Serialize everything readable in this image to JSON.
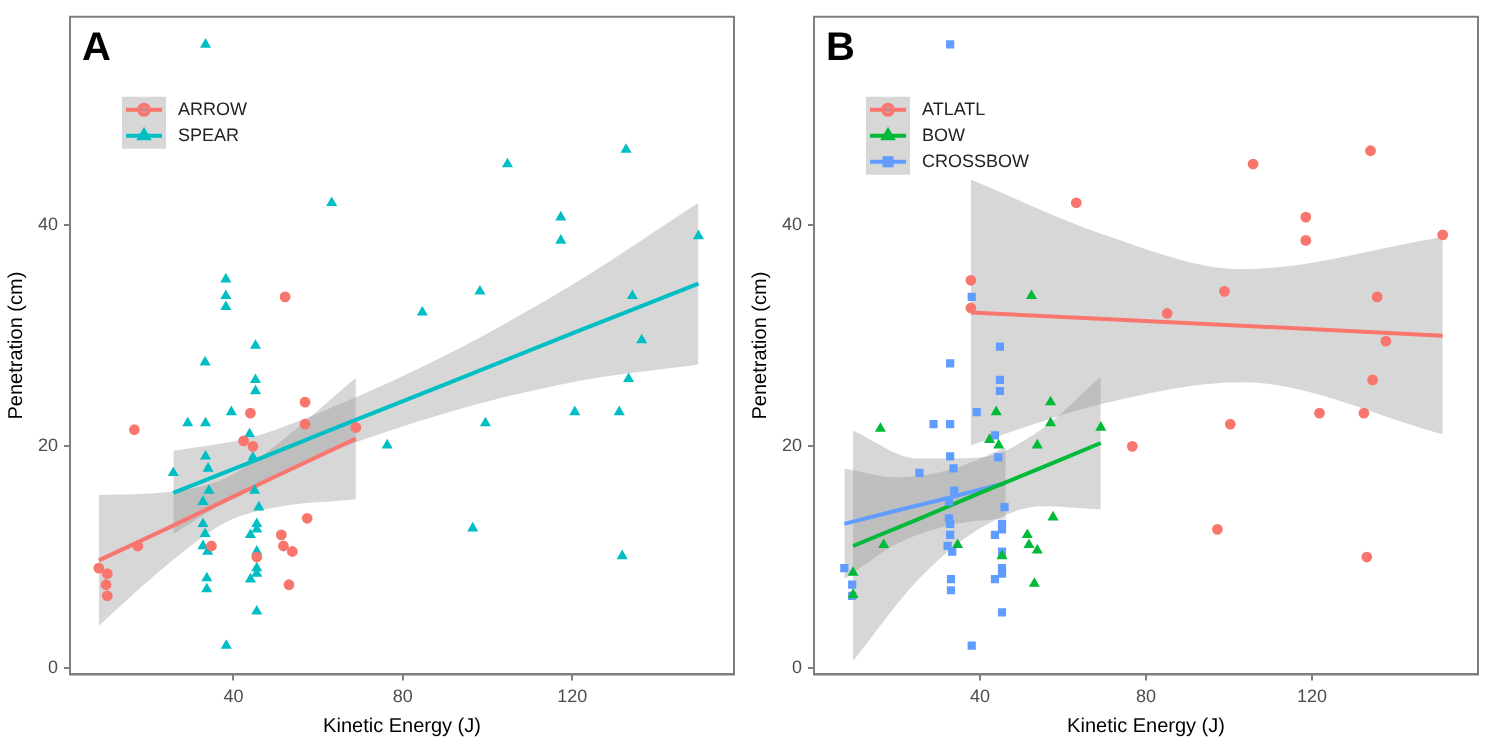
{
  "chart_data": [
    {
      "type": "scatter",
      "title": "A",
      "xlabel": "Kinetic Energy (J)",
      "ylabel": "Penetration (cm)",
      "xlim": [
        1.4,
        158.2
      ],
      "ylim": [
        -0.6,
        58.8
      ],
      "xticks": [
        40,
        80,
        120
      ],
      "yticks": [
        0,
        20,
        40
      ],
      "grid": false,
      "legend": "top left",
      "series": [
        {
          "name": "ARROW",
          "color": "#f8766d",
          "marker": "circle",
          "x": [
            8.2,
            10.2,
            9.9,
            10.2,
            16.6,
            17.4,
            34.8,
            42.4,
            44.0,
            44.6,
            45.5,
            52.2,
            51.3,
            51.8,
            53.9,
            53.1,
            56.9,
            56.9,
            57.4,
            68.9
          ],
          "values": [
            9.0,
            8.5,
            7.5,
            6.5,
            21.5,
            11.0,
            11.0,
            20.5,
            23.0,
            20.0,
            10.0,
            33.5,
            12.0,
            11.0,
            10.5,
            7.5,
            24.0,
            22.0,
            13.5,
            21.7
          ]
        },
        {
          "name": "SPEAR",
          "color": "#00bfc4",
          "marker": "triangle",
          "x": [
            33.4,
            63.2,
            25.8,
            29.2,
            33.3,
            33.4,
            33.4,
            34.0,
            34.2,
            32.8,
            32.8,
            33.3,
            32.8,
            33.9,
            33.7,
            33.7,
            38.2,
            38.2,
            38.2,
            39.5,
            38.3,
            43.8,
            44.6,
            45.2,
            45.2,
            45.2,
            45.0,
            46.0,
            45.5,
            45.5,
            44.0,
            44.0,
            45.5,
            45.5,
            45.5,
            45.5,
            76.3,
            84.6,
            96.5,
            98.2,
            99.5,
            104.7,
            117.3,
            117.3,
            120.6,
            131.1,
            131.8,
            132.7,
            133.3,
            134.2,
            136.4,
            149.8
          ],
          "values": [
            56.3,
            42.0,
            17.6,
            22.1,
            27.6,
            22.1,
            19.1,
            18.0,
            16.0,
            15.0,
            13.0,
            12.1,
            11.0,
            10.5,
            8.1,
            7.1,
            35.1,
            33.6,
            32.6,
            23.1,
            2.0,
            21.1,
            19.0,
            29.1,
            26.0,
            25.0,
            16.0,
            14.5,
            13.0,
            12.5,
            12.0,
            8.0,
            9.0,
            8.5,
            5.1,
            10.5,
            20.1,
            32.1,
            12.6,
            34.0,
            22.1,
            45.5,
            40.7,
            38.6,
            23.1,
            23.1,
            10.1,
            46.8,
            26.1,
            33.6,
            29.6,
            39.0
          ]
        },
        {
          "type": "line",
          "color": "#f8766d",
          "x": [
            8.2,
            25,
            38,
            50,
            68.9
          ],
          "values": [
            9.7,
            12.7,
            15.1,
            17.3,
            20.7
          ],
          "lower": [
            3.8,
            9.5,
            13.1,
            14.5,
            15.2
          ],
          "upper": [
            15.6,
            15.9,
            17.1,
            20.1,
            26.2
          ]
        },
        {
          "type": "line",
          "color": "#00bfc4",
          "x": [
            25.8,
            45,
            65,
            90,
            120,
            149.8
          ],
          "values": [
            15.8,
            18.7,
            21.8,
            25.6,
            30.2,
            34.7
          ],
          "lower": [
            12.1,
            16.5,
            19.8,
            23.0,
            25.8,
            27.4
          ],
          "upper": [
            19.6,
            20.9,
            23.8,
            28.2,
            34.6,
            42.0
          ]
        }
      ]
    },
    {
      "type": "scatter",
      "title": "B",
      "xlabel": "Kinetic Energy (J)",
      "ylabel": "Penetration (cm)",
      "xlim": [
        0,
        160
      ],
      "ylim": [
        -0.6,
        58.8
      ],
      "xticks": [
        40,
        80,
        120
      ],
      "yticks": [
        0,
        20,
        40
      ],
      "grid": false,
      "legend": "top left",
      "series": [
        {
          "name": "ATLATL",
          "color": "#f8766d",
          "marker": "circle",
          "x": [
            37.8,
            37.8,
            63.2,
            76.7,
            85.1,
            97.2,
            98.9,
            100.3,
            105.8,
            118.5,
            118.5,
            121.8,
            132.5,
            133.2,
            134.1,
            134.6,
            135.7,
            137.8,
            151.5
          ],
          "values": [
            35.0,
            32.5,
            42.0,
            20.0,
            32.0,
            12.5,
            34.0,
            22.0,
            45.5,
            40.7,
            38.6,
            23.0,
            23.0,
            10.0,
            46.7,
            26.0,
            33.5,
            29.5,
            39.1
          ]
        },
        {
          "name": "BOW",
          "color": "#00ba38",
          "marker": "triangle",
          "x": [
            9.4,
            9.4,
            16.0,
            16.8,
            34.6,
            42.3,
            43.9,
            44.5,
            45.3,
            52.4,
            51.4,
            51.8,
            53.8,
            53.1,
            57.0,
            57.0,
            53.8,
            57.6,
            69.1
          ],
          "values": [
            8.6,
            6.6,
            21.6,
            11.1,
            11.1,
            20.6,
            23.1,
            20.1,
            10.1,
            33.6,
            12.0,
            11.1,
            10.6,
            7.6,
            24.0,
            22.1,
            20.1,
            13.6,
            21.7
          ]
        },
        {
          "name": "CROSSBOW",
          "color": "#619cff",
          "marker": "square",
          "x": [
            7.3,
            9.2,
            9.2,
            32.8,
            25.4,
            28.8,
            32.8,
            32.8,
            32.8,
            33.6,
            33.8,
            32.5,
            32.5,
            32.8,
            32.8,
            32.2,
            33.3,
            33.0,
            33.0,
            38.0,
            39.2,
            38.0,
            43.6,
            44.4,
            44.8,
            44.8,
            44.8,
            45.9,
            45.3,
            45.3,
            43.6,
            43.6,
            45.3,
            45.3,
            45.3,
            45.3
          ],
          "values": [
            9.0,
            7.5,
            6.5,
            56.3,
            17.6,
            22.0,
            27.5,
            22.0,
            19.1,
            18.0,
            16.0,
            15.0,
            13.5,
            13.0,
            12.0,
            11.0,
            10.5,
            8.0,
            7.0,
            33.5,
            23.1,
            2.0,
            21.0,
            19.0,
            29.0,
            26.0,
            25.0,
            14.5,
            13.0,
            12.5,
            12.0,
            8.0,
            10.5,
            9.0,
            8.5,
            5.0
          ]
        },
        {
          "type": "line",
          "color": "#f8766d",
          "x": [
            37.8,
            70,
            103,
            151.5
          ],
          "values": [
            32.1,
            31.5,
            30.9,
            30.0
          ],
          "lower": [
            20.1,
            23.9,
            25.8,
            21.1
          ],
          "upper": [
            44.1,
            39.1,
            36.0,
            38.9
          ]
        },
        {
          "type": "line",
          "color": "#00ba38",
          "x": [
            9.4,
            25,
            40,
            55,
            69.1
          ],
          "values": [
            11.0,
            13.4,
            15.8,
            18.1,
            20.3
          ],
          "lower": [
            0.6,
            7.9,
            12.6,
            14.6,
            14.3
          ],
          "upper": [
            21.4,
            18.9,
            19.0,
            21.6,
            26.3
          ]
        },
        {
          "type": "line",
          "color": "#619cff",
          "x": [
            7.3,
            20,
            33,
            46.2
          ],
          "values": [
            13.0,
            14.2,
            15.4,
            16.7
          ],
          "lower": [
            8.0,
            11.2,
            12.9,
            13.5
          ],
          "upper": [
            18.0,
            17.2,
            17.9,
            19.9
          ]
        }
      ]
    }
  ]
}
